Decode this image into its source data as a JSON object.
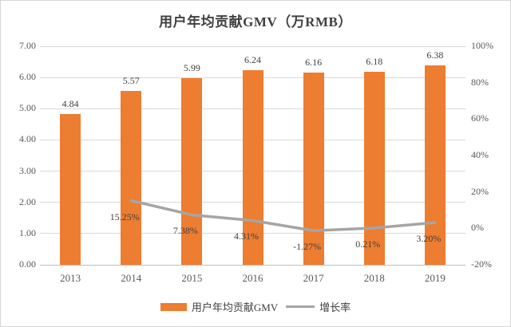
{
  "chart_data": {
    "type": "bar",
    "title": "用户年均贡献GMV（万RMB）",
    "categories": [
      "2013",
      "2014",
      "2015",
      "2016",
      "2017",
      "2018",
      "2019"
    ],
    "series": [
      {
        "name": "用户年均贡献GMV",
        "type": "bar",
        "axis": "left",
        "color": "#ED7D31",
        "values": [
          4.84,
          5.57,
          5.99,
          6.24,
          6.16,
          6.18,
          6.38
        ],
        "labels": [
          "4.84",
          "5.57",
          "5.99",
          "6.24",
          "6.16",
          "6.18",
          "6.38"
        ]
      },
      {
        "name": "增长率",
        "type": "line",
        "axis": "right",
        "color": "#A5A5A5",
        "values": [
          null,
          15.25,
          7.38,
          4.31,
          -1.27,
          0.21,
          3.2
        ],
        "labels": [
          null,
          "15.25%",
          "7.38%",
          "4.31%",
          "-1.27%",
          "0.21%",
          "3.20%"
        ]
      }
    ],
    "left_axis": {
      "min": 0,
      "max": 7,
      "tick_values": [
        0,
        1,
        2,
        3,
        4,
        5,
        6,
        7
      ],
      "tick_labels": [
        "0.00",
        "1.00",
        "2.00",
        "3.00",
        "4.00",
        "5.00",
        "6.00",
        "7.00"
      ]
    },
    "right_axis": {
      "min": -20,
      "max": 100,
      "tick_values": [
        -20,
        0,
        20,
        40,
        60,
        80,
        100
      ],
      "tick_labels": [
        "-20%",
        "0%",
        "20%",
        "40%",
        "60%",
        "80%",
        "100%"
      ]
    },
    "legend_position": "bottom",
    "grid": true
  }
}
